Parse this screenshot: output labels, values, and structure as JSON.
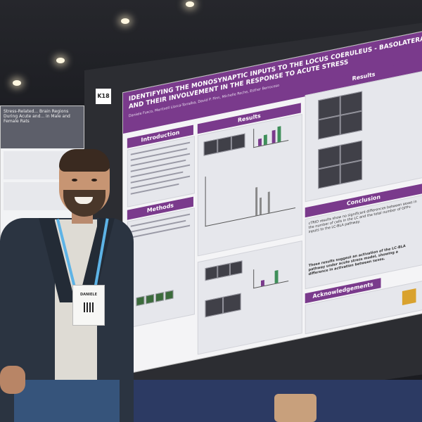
{
  "scene": {
    "description_free": true
  },
  "board": {
    "number": "K18"
  },
  "left_poster": {
    "title": "Stress-Related... Brain Regions During Acute and... in Male and Female Rats"
  },
  "poster": {
    "title_line1": "IDENTIFYING THE MONOSYNAPTIC INPUTS TO THE LOCUS COERULEUS - BASOLATERAL AMYGDALA",
    "title_line2": "AND THEIR INVOLVEMENT IN THE RESPONSE TO ACUTE STRESS",
    "authors": "Daniele Fusco, Meritxell Llorca-Torralba, David P. Finn, Michelle Roche, Esther Berrocoso",
    "sections": {
      "introduction": "Introduction",
      "methods": "Methods",
      "results_left": "Results",
      "results_right": "Results",
      "conclusion": "Conclusion",
      "acknowledgements": "Acknowledgements"
    },
    "conclusion_text": "cTRIO results show no significant differences between sexes in the number of cells in the LC and the total number of GFP+ inputs to the LC-BLA pathway.",
    "conclusion_highlight": "These results suggest an activation of the LC-BLA pathway under acute stress model, showing a difference in activation between sexes."
  },
  "attendee": {
    "badge_name": "DANIELE"
  }
}
